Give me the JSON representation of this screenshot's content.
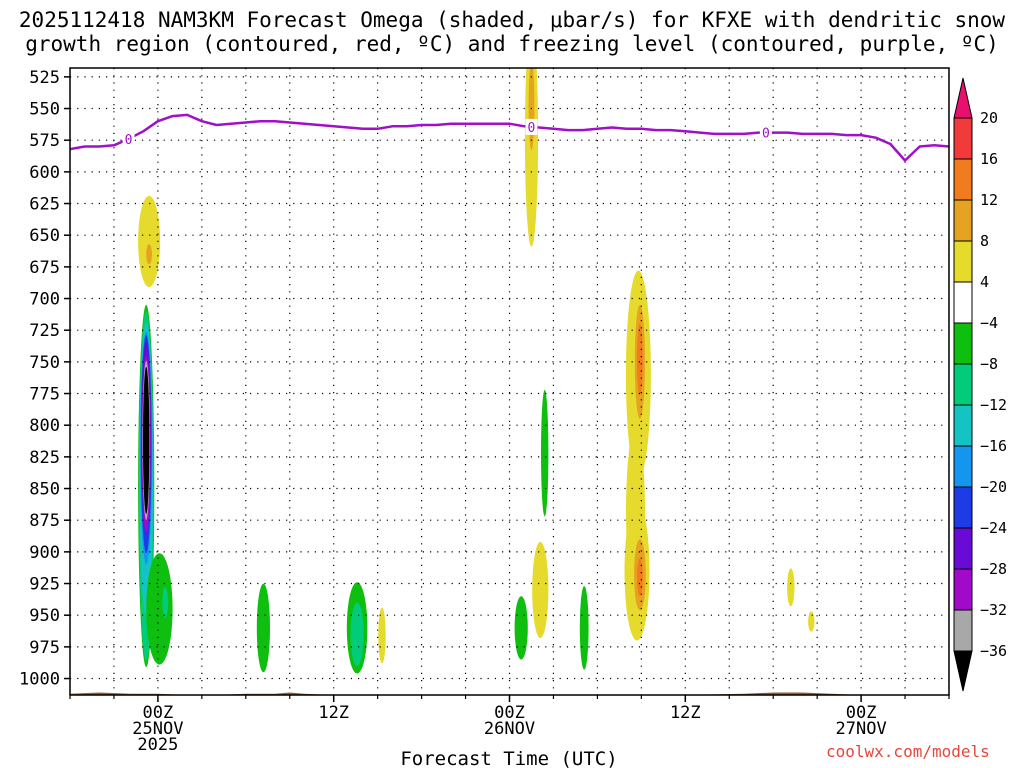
{
  "title": {
    "line1": "2025112418 NAM3KM Forecast Omega (shaded, μbar/s) for KFXE with dendritic snow",
    "line2": "growth region (contoured, red, ºC) and freezing level (contoured, purple, ºC)"
  },
  "credit": "coolwx.com/models",
  "chart_data": {
    "type": "heatmap",
    "xlabel": "Forecast Time (UTC)",
    "x_unit": "hours from 2025-11-24 18Z",
    "xlim": [
      0,
      60
    ],
    "x_ticks": [
      {
        "hour": 6,
        "lines": [
          "00Z",
          "25NOV",
          "2025"
        ]
      },
      {
        "hour": 18,
        "lines": [
          "12Z"
        ]
      },
      {
        "hour": 30,
        "lines": [
          "00Z",
          "26NOV"
        ]
      },
      {
        "hour": 42,
        "lines": [
          "12Z"
        ]
      },
      {
        "hour": 54,
        "lines": [
          "00Z",
          "27NOV"
        ]
      }
    ],
    "y_ticks": [
      525,
      550,
      575,
      600,
      625,
      650,
      675,
      700,
      725,
      750,
      775,
      800,
      825,
      850,
      875,
      900,
      925,
      950,
      975,
      1000
    ],
    "ylim": [
      518,
      1013
    ],
    "grid": true,
    "colorbar": {
      "labels": [
        "20",
        "16",
        "12",
        "8",
        "4",
        "−4",
        "−8",
        "−12",
        "−16",
        "−20",
        "−24",
        "−28",
        "−32",
        "−36"
      ],
      "colors": [
        "#e8106e",
        "#f23a3a",
        "#f27b1e",
        "#e6a321",
        "#e6db2d",
        "#ffffff",
        "#0fbf0f",
        "#00cc7a",
        "#14c4c4",
        "#1496f0",
        "#1e3ce6",
        "#6a0ad6",
        "#a00ac8",
        "#a8a8a8",
        "#000000"
      ]
    },
    "freezing_level": {
      "color": "#a010c8",
      "label": "0",
      "label_hours": [
        4,
        31.5,
        47.5
      ],
      "points": [
        [
          0,
          582
        ],
        [
          1,
          580
        ],
        [
          2,
          580
        ],
        [
          3,
          579
        ],
        [
          4,
          574
        ],
        [
          5,
          568
        ],
        [
          6,
          560
        ],
        [
          7,
          556
        ],
        [
          8,
          555
        ],
        [
          9,
          560
        ],
        [
          10,
          563
        ],
        [
          11,
          562
        ],
        [
          12,
          561
        ],
        [
          13,
          560
        ],
        [
          14,
          560
        ],
        [
          15,
          561
        ],
        [
          16,
          562
        ],
        [
          17,
          563
        ],
        [
          18,
          564
        ],
        [
          19,
          565
        ],
        [
          20,
          566
        ],
        [
          21,
          566
        ],
        [
          22,
          564
        ],
        [
          23,
          564
        ],
        [
          24,
          563
        ],
        [
          25,
          563
        ],
        [
          26,
          562
        ],
        [
          27,
          562
        ],
        [
          28,
          562
        ],
        [
          29,
          562
        ],
        [
          30,
          562
        ],
        [
          31,
          564
        ],
        [
          32,
          565
        ],
        [
          33,
          566
        ],
        [
          34,
          567
        ],
        [
          35,
          567
        ],
        [
          36,
          566
        ],
        [
          37,
          565
        ],
        [
          38,
          566
        ],
        [
          39,
          566
        ],
        [
          40,
          567
        ],
        [
          41,
          567
        ],
        [
          42,
          568
        ],
        [
          43,
          569
        ],
        [
          44,
          570
        ],
        [
          45,
          570
        ],
        [
          46,
          570
        ],
        [
          47,
          569
        ],
        [
          48,
          569
        ],
        [
          49,
          569
        ],
        [
          50,
          570
        ],
        [
          51,
          570
        ],
        [
          52,
          570
        ],
        [
          53,
          571
        ],
        [
          54,
          571
        ],
        [
          55,
          573
        ],
        [
          56,
          578
        ],
        [
          57,
          591
        ],
        [
          58,
          580
        ],
        [
          59,
          579
        ],
        [
          60,
          580
        ]
      ]
    },
    "omega_regions": [
      {
        "level": "4",
        "hour": 5.4,
        "p": 655,
        "dh": 0.75,
        "dp": 36
      },
      {
        "level": "8",
        "hour": 5.4,
        "p": 665,
        "dh": 0.2,
        "dp": 8
      },
      {
        "level": "-4",
        "hour": 5.2,
        "p": 848,
        "dh": 0.55,
        "dp": 143
      },
      {
        "level": "-8",
        "hour": 5.2,
        "p": 848,
        "dh": 0.5,
        "dp": 138
      },
      {
        "level": "-12",
        "hour": 5.2,
        "p": 835,
        "dh": 0.47,
        "dp": 116
      },
      {
        "level": "-16",
        "hour": 5.2,
        "p": 818,
        "dh": 0.42,
        "dp": 92
      },
      {
        "level": "-20",
        "hour": 5.2,
        "p": 815,
        "dh": 0.37,
        "dp": 86
      },
      {
        "level": "-24",
        "hour": 5.2,
        "p": 810,
        "dh": 0.33,
        "dp": 76
      },
      {
        "level": "-28",
        "hour": 5.2,
        "p": 815,
        "dh": 0.3,
        "dp": 70
      },
      {
        "level": "-32",
        "hour": 5.2,
        "p": 812,
        "dh": 0.26,
        "dp": 63
      },
      {
        "level": "-36",
        "hour": 5.2,
        "p": 812,
        "dh": 0.22,
        "dp": 58
      },
      {
        "level": "-4",
        "hour": 6.1,
        "p": 945,
        "dh": 0.9,
        "dp": 44
      },
      {
        "level": "-8",
        "hour": 6.5,
        "p": 940,
        "dh": 0.2,
        "dp": 12
      },
      {
        "level": "-4",
        "hour": 13.2,
        "p": 960,
        "dh": 0.45,
        "dp": 35
      },
      {
        "level": "-4",
        "hour": 19.6,
        "p": 960,
        "dh": 0.7,
        "dp": 36
      },
      {
        "level": "-8",
        "hour": 19.6,
        "p": 965,
        "dh": 0.45,
        "dp": 25
      },
      {
        "level": "4",
        "hour": 21.3,
        "p": 966,
        "dh": 0.25,
        "dp": 22
      },
      {
        "level": "4",
        "hour": 31.5,
        "p": 572,
        "dh": 0.45,
        "dp": 87
      },
      {
        "level": "8",
        "hour": 31.5,
        "p": 548,
        "dh": 0.2,
        "dp": 35
      },
      {
        "level": "-4",
        "hour": 30.8,
        "p": 960,
        "dh": 0.45,
        "dp": 25
      },
      {
        "level": "4",
        "hour": 32.1,
        "p": 930,
        "dh": 0.55,
        "dp": 38
      },
      {
        "level": "-4",
        "hour": 32.4,
        "p": 822,
        "dh": 0.25,
        "dp": 50
      },
      {
        "level": "-4",
        "hour": 35.1,
        "p": 960,
        "dh": 0.3,
        "dp": 33
      },
      {
        "level": "4",
        "hour": 38.8,
        "p": 760,
        "dh": 0.85,
        "dp": 82
      },
      {
        "level": "4",
        "hour": 38.6,
        "p": 868,
        "dh": 0.65,
        "dp": 65
      },
      {
        "level": "4",
        "hour": 38.7,
        "p": 915,
        "dh": 0.85,
        "dp": 55
      },
      {
        "level": "8",
        "hour": 38.9,
        "p": 750,
        "dh": 0.35,
        "dp": 45
      },
      {
        "level": "12",
        "hour": 38.9,
        "p": 748,
        "dh": 0.2,
        "dp": 28
      },
      {
        "level": "8",
        "hour": 38.9,
        "p": 918,
        "dh": 0.4,
        "dp": 28
      },
      {
        "level": "12",
        "hour": 38.9,
        "p": 920,
        "dh": 0.2,
        "dp": 15
      },
      {
        "level": "4",
        "hour": 49.2,
        "p": 928,
        "dh": 0.25,
        "dp": 15
      },
      {
        "level": "4",
        "hour": 50.6,
        "p": 955,
        "dh": 0.22,
        "dp": 8
      }
    ],
    "terrain": {
      "color": "#9e5a2c",
      "points": [
        [
          0,
          1012
        ],
        [
          2,
          1011
        ],
        [
          4,
          1012
        ],
        [
          6,
          1012
        ],
        [
          8,
          1013
        ],
        [
          10,
          1013
        ],
        [
          12,
          1012
        ],
        [
          14,
          1012
        ],
        [
          15,
          1011
        ],
        [
          16,
          1012
        ],
        [
          18,
          1013
        ],
        [
          20,
          1013
        ],
        [
          22,
          1014
        ],
        [
          24,
          1013
        ],
        [
          26,
          1013
        ],
        [
          28,
          1013
        ],
        [
          30,
          1013
        ],
        [
          34,
          1013
        ],
        [
          38,
          1013
        ],
        [
          42,
          1013
        ],
        [
          46,
          1012
        ],
        [
          48,
          1011
        ],
        [
          50,
          1011
        ],
        [
          52,
          1012
        ],
        [
          54,
          1013
        ],
        [
          56,
          1013
        ],
        [
          58,
          1013
        ],
        [
          60,
          1013
        ]
      ]
    }
  }
}
